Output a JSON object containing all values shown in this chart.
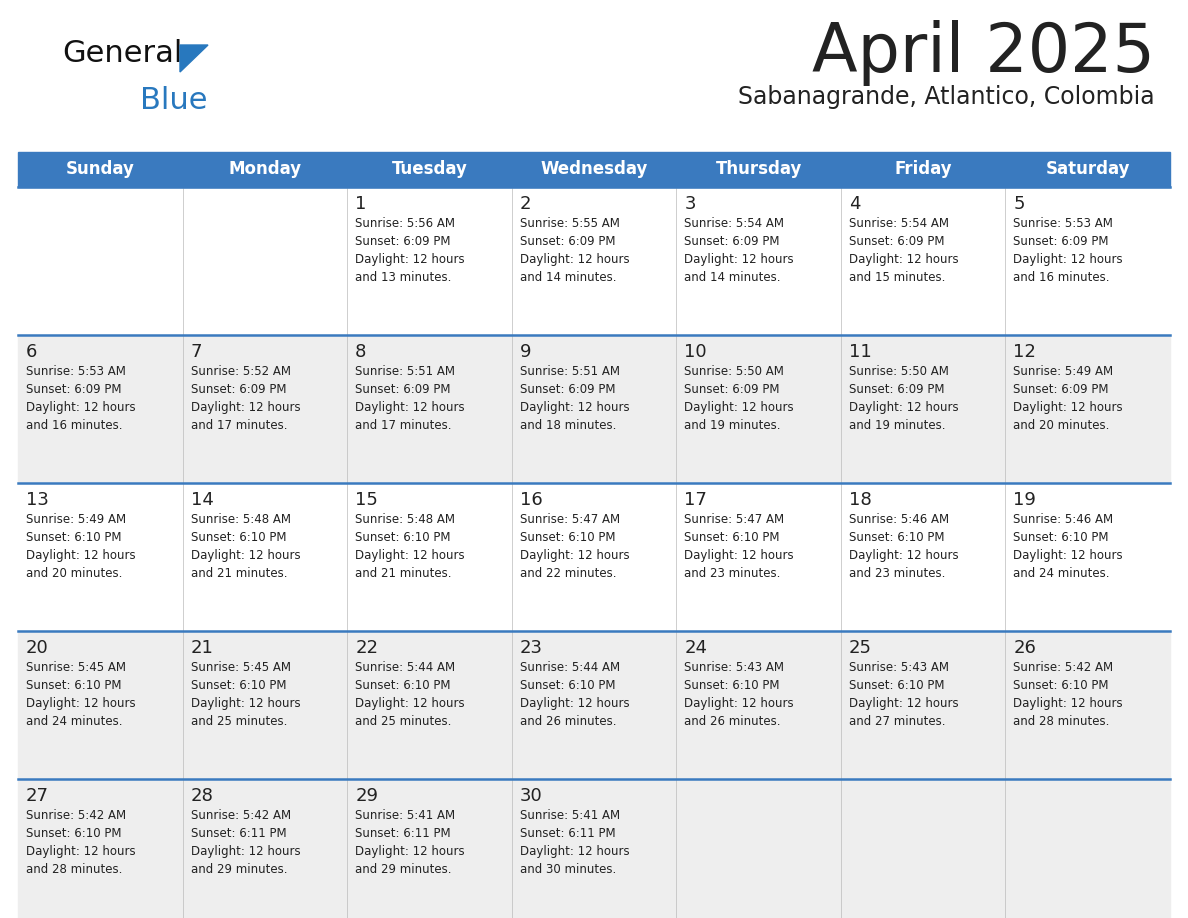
{
  "title": "April 2025",
  "subtitle": "Sabanagrande, Atlantico, Colombia",
  "header_bg_color": "#3a7abf",
  "header_text_color": "#ffffff",
  "cell_bg_white": "#ffffff",
  "cell_bg_gray": "#eeeeee",
  "row_line_color": "#3a7abf",
  "text_color": "#222222",
  "days_of_week": [
    "Sunday",
    "Monday",
    "Tuesday",
    "Wednesday",
    "Thursday",
    "Friday",
    "Saturday"
  ],
  "row_bg_pattern": [
    0,
    1,
    0,
    1,
    1
  ],
  "calendar_data": [
    [
      "",
      "",
      "1\nSunrise: 5:56 AM\nSunset: 6:09 PM\nDaylight: 12 hours\nand 13 minutes.",
      "2\nSunrise: 5:55 AM\nSunset: 6:09 PM\nDaylight: 12 hours\nand 14 minutes.",
      "3\nSunrise: 5:54 AM\nSunset: 6:09 PM\nDaylight: 12 hours\nand 14 minutes.",
      "4\nSunrise: 5:54 AM\nSunset: 6:09 PM\nDaylight: 12 hours\nand 15 minutes.",
      "5\nSunrise: 5:53 AM\nSunset: 6:09 PM\nDaylight: 12 hours\nand 16 minutes."
    ],
    [
      "6\nSunrise: 5:53 AM\nSunset: 6:09 PM\nDaylight: 12 hours\nand 16 minutes.",
      "7\nSunrise: 5:52 AM\nSunset: 6:09 PM\nDaylight: 12 hours\nand 17 minutes.",
      "8\nSunrise: 5:51 AM\nSunset: 6:09 PM\nDaylight: 12 hours\nand 17 minutes.",
      "9\nSunrise: 5:51 AM\nSunset: 6:09 PM\nDaylight: 12 hours\nand 18 minutes.",
      "10\nSunrise: 5:50 AM\nSunset: 6:09 PM\nDaylight: 12 hours\nand 19 minutes.",
      "11\nSunrise: 5:50 AM\nSunset: 6:09 PM\nDaylight: 12 hours\nand 19 minutes.",
      "12\nSunrise: 5:49 AM\nSunset: 6:09 PM\nDaylight: 12 hours\nand 20 minutes."
    ],
    [
      "13\nSunrise: 5:49 AM\nSunset: 6:10 PM\nDaylight: 12 hours\nand 20 minutes.",
      "14\nSunrise: 5:48 AM\nSunset: 6:10 PM\nDaylight: 12 hours\nand 21 minutes.",
      "15\nSunrise: 5:48 AM\nSunset: 6:10 PM\nDaylight: 12 hours\nand 21 minutes.",
      "16\nSunrise: 5:47 AM\nSunset: 6:10 PM\nDaylight: 12 hours\nand 22 minutes.",
      "17\nSunrise: 5:47 AM\nSunset: 6:10 PM\nDaylight: 12 hours\nand 23 minutes.",
      "18\nSunrise: 5:46 AM\nSunset: 6:10 PM\nDaylight: 12 hours\nand 23 minutes.",
      "19\nSunrise: 5:46 AM\nSunset: 6:10 PM\nDaylight: 12 hours\nand 24 minutes."
    ],
    [
      "20\nSunrise: 5:45 AM\nSunset: 6:10 PM\nDaylight: 12 hours\nand 24 minutes.",
      "21\nSunrise: 5:45 AM\nSunset: 6:10 PM\nDaylight: 12 hours\nand 25 minutes.",
      "22\nSunrise: 5:44 AM\nSunset: 6:10 PM\nDaylight: 12 hours\nand 25 minutes.",
      "23\nSunrise: 5:44 AM\nSunset: 6:10 PM\nDaylight: 12 hours\nand 26 minutes.",
      "24\nSunrise: 5:43 AM\nSunset: 6:10 PM\nDaylight: 12 hours\nand 26 minutes.",
      "25\nSunrise: 5:43 AM\nSunset: 6:10 PM\nDaylight: 12 hours\nand 27 minutes.",
      "26\nSunrise: 5:42 AM\nSunset: 6:10 PM\nDaylight: 12 hours\nand 28 minutes."
    ],
    [
      "27\nSunrise: 5:42 AM\nSunset: 6:10 PM\nDaylight: 12 hours\nand 28 minutes.",
      "28\nSunrise: 5:42 AM\nSunset: 6:11 PM\nDaylight: 12 hours\nand 29 minutes.",
      "29\nSunrise: 5:41 AM\nSunset: 6:11 PM\nDaylight: 12 hours\nand 29 minutes.",
      "30\nSunrise: 5:41 AM\nSunset: 6:11 PM\nDaylight: 12 hours\nand 30 minutes.",
      "",
      "",
      ""
    ]
  ],
  "logo_color_general": "#111111",
  "logo_color_blue": "#2878be",
  "logo_triangle_color": "#2878be",
  "background_color": "#ffffff"
}
